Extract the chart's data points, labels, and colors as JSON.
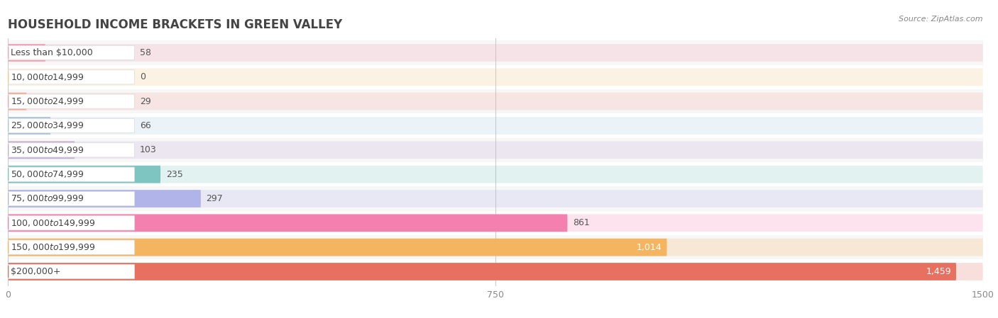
{
  "title": "HOUSEHOLD INCOME BRACKETS IN GREEN VALLEY",
  "source": "Source: ZipAtlas.com",
  "categories": [
    "Less than $10,000",
    "$10,000 to $14,999",
    "$15,000 to $24,999",
    "$25,000 to $34,999",
    "$35,000 to $49,999",
    "$50,000 to $74,999",
    "$75,000 to $99,999",
    "$100,000 to $149,999",
    "$150,000 to $199,999",
    "$200,000+"
  ],
  "values": [
    58,
    0,
    29,
    66,
    103,
    235,
    297,
    861,
    1014,
    1459
  ],
  "bar_colors": [
    "#f4a0b5",
    "#f5c882",
    "#f4a898",
    "#a8c4e0",
    "#c4aed4",
    "#7ec4c0",
    "#b0b4e8",
    "#f480b0",
    "#f5b460",
    "#e87060"
  ],
  "row_colors": [
    "#f7f7f7",
    "#ffffff"
  ],
  "xlim": [
    0,
    1500
  ],
  "xticks": [
    0,
    750,
    1500
  ],
  "background_color": "#ffffff",
  "bar_height": 0.72,
  "title_fontsize": 12,
  "label_fontsize": 9,
  "value_fontsize": 9
}
